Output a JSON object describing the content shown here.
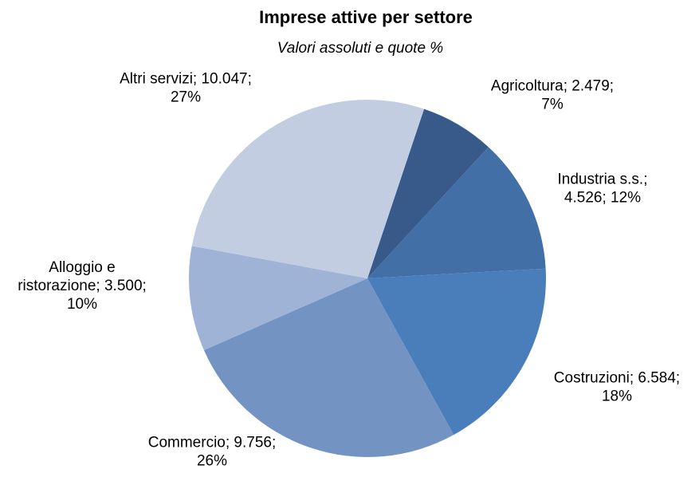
{
  "chart_data": {
    "type": "pie",
    "title": "Imprese attive per settore",
    "subtitle": "Valori assoluti e quote %",
    "slices": [
      {
        "name": "Agricoltura",
        "value": 2479,
        "percent": 7,
        "color": "#375a8a",
        "label_lines": [
          "Agricoltura; 2.479;",
          "7%"
        ]
      },
      {
        "name": "Industria s.s.",
        "value": 4526,
        "percent": 12,
        "color": "#416fa6",
        "label_lines": [
          "Industria s.s.;",
          "4.526; 12%"
        ]
      },
      {
        "name": "Costruzioni",
        "value": 6584,
        "percent": 18,
        "color": "#4a7ebb",
        "label_lines": [
          "Costruzioni; 6.584;",
          "18%"
        ]
      },
      {
        "name": "Commercio",
        "value": 9756,
        "percent": 26,
        "color": "#7393c3",
        "label_lines": [
          "Commercio; 9.756;",
          "26%"
        ]
      },
      {
        "name": "Alloggio e ristorazione",
        "value": 3500,
        "percent": 10,
        "color": "#9fb3d6",
        "label_lines": [
          "Alloggio e",
          "ristorazione; 3.500;",
          "10%"
        ]
      },
      {
        "name": "Altri servizi",
        "value": 10047,
        "percent": 27,
        "color": "#c3cde2",
        "label_lines": [
          "Altri servizi; 10.047;",
          "27%"
        ]
      }
    ],
    "start_angle_deg": 18.5,
    "direction": "clockwise",
    "legend": "none"
  }
}
